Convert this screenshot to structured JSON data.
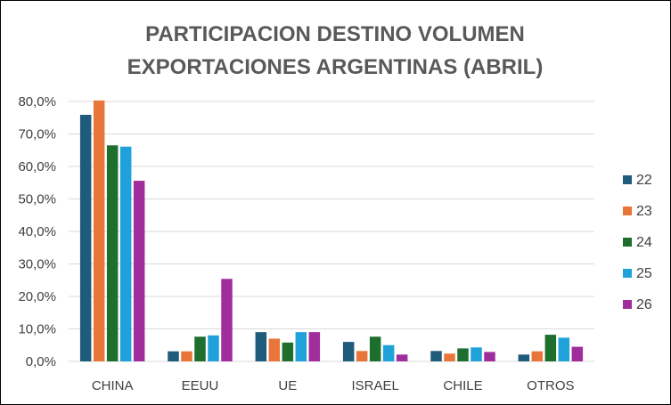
{
  "chart_data": {
    "type": "bar",
    "title_lines": [
      "PARTICIPACION DESTINO VOLUMEN",
      "EXPORTACIONES ARGENTINAS (ABRIL)"
    ],
    "categories": [
      "CHINA",
      "EEUU",
      "UE",
      "ISRAEL",
      "CHILE",
      "OTROS"
    ],
    "series": [
      {
        "name": "22",
        "color": "#1F5B7A",
        "values": [
          75.9,
          3.1,
          9.0,
          6.0,
          3.2,
          2.1
        ]
      },
      {
        "name": "23",
        "color": "#E8763A",
        "values": [
          80.3,
          3.1,
          7.0,
          3.2,
          2.4,
          3.1
        ]
      },
      {
        "name": "24",
        "color": "#1E6F2E",
        "values": [
          66.5,
          7.6,
          5.8,
          7.6,
          4.0,
          8.2
        ]
      },
      {
        "name": "25",
        "color": "#1FA2D9",
        "values": [
          66.1,
          8.0,
          9.0,
          5.0,
          4.3,
          7.3
        ]
      },
      {
        "name": "26",
        "color": "#A02D9C",
        "values": [
          55.6,
          25.4,
          9.0,
          2.1,
          2.9,
          4.5
        ]
      }
    ],
    "y_ticks": [
      "0,0%",
      "10,0%",
      "20,0%",
      "30,0%",
      "40,0%",
      "50,0%",
      "60,0%",
      "70,0%",
      "80,0%"
    ],
    "ylim": [
      0,
      80
    ],
    "grid": true,
    "legend_position": "right",
    "xlabel": "",
    "ylabel": ""
  },
  "colors": {
    "title": "#595959",
    "gridline": "#D9D9D9",
    "axis_text": "#404040"
  }
}
